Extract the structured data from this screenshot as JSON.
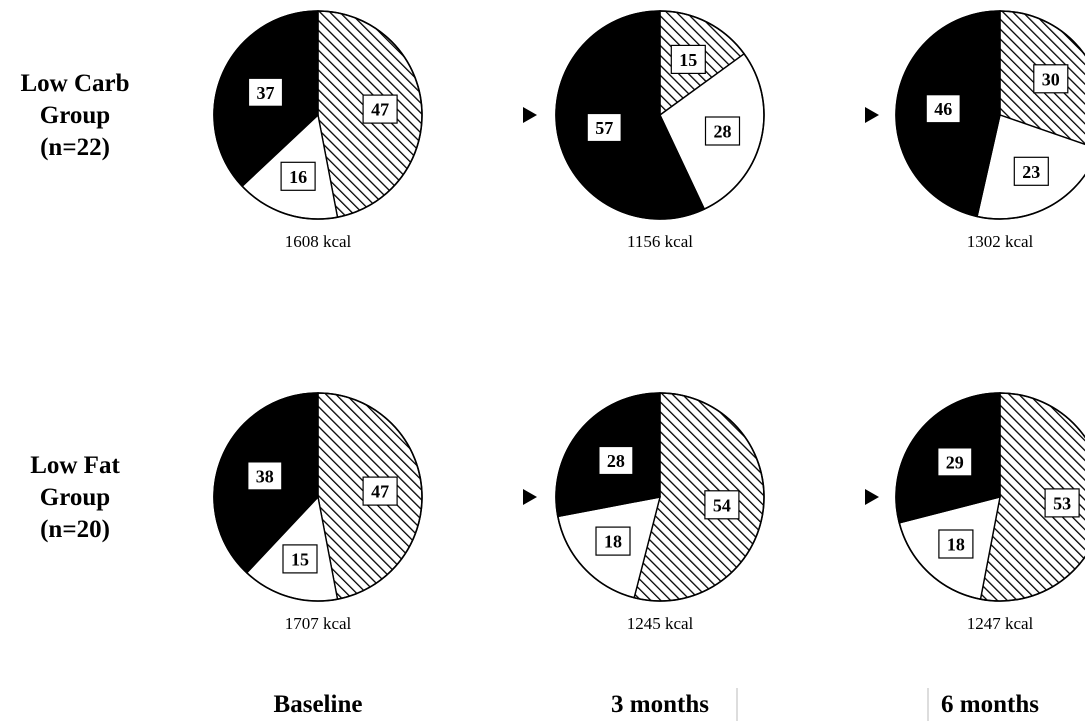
{
  "chart_data": {
    "type": "pie",
    "rows": [
      {
        "label_lines": [
          "Low Carb",
          "Group",
          "(n=22)"
        ],
        "pies": [
          {
            "time": "Baseline",
            "kcal_label": "1608 kcal",
            "slices": [
              {
                "key": "hatched",
                "value": 47
              },
              {
                "key": "white",
                "value": 16
              },
              {
                "key": "black",
                "value": 37
              }
            ]
          },
          {
            "time": "3 months",
            "kcal_label": "1156 kcal",
            "slices": [
              {
                "key": "hatched",
                "value": 15
              },
              {
                "key": "white",
                "value": 28
              },
              {
                "key": "black",
                "value": 57
              }
            ]
          },
          {
            "time": "6 months",
            "kcal_label": "1302 kcal",
            "slices": [
              {
                "key": "hatched",
                "value": 30
              },
              {
                "key": "white",
                "value": 23
              },
              {
                "key": "black",
                "value": 46
              }
            ]
          }
        ]
      },
      {
        "label_lines": [
          "Low Fat",
          "Group",
          "(n=20)"
        ],
        "pies": [
          {
            "time": "Baseline",
            "kcal_label": "1707 kcal",
            "slices": [
              {
                "key": "hatched",
                "value": 47
              },
              {
                "key": "white",
                "value": 15
              },
              {
                "key": "black",
                "value": 38
              }
            ]
          },
          {
            "time": "3 months",
            "kcal_label": "1245 kcal",
            "slices": [
              {
                "key": "hatched",
                "value": 54
              },
              {
                "key": "white",
                "value": 18
              },
              {
                "key": "black",
                "value": 28
              }
            ]
          },
          {
            "time": "6 months",
            "kcal_label": "1247 kcal",
            "slices": [
              {
                "key": "hatched",
                "value": 53
              },
              {
                "key": "white",
                "value": 18
              },
              {
                "key": "black",
                "value": 29
              }
            ]
          }
        ]
      }
    ],
    "time_labels": [
      "Baseline",
      "3 months",
      "6 months"
    ],
    "slice_fills": {
      "hatched": "diagonal-hatch",
      "white": "#ffffff",
      "black": "#000000"
    },
    "title": "",
    "legend": "none"
  }
}
